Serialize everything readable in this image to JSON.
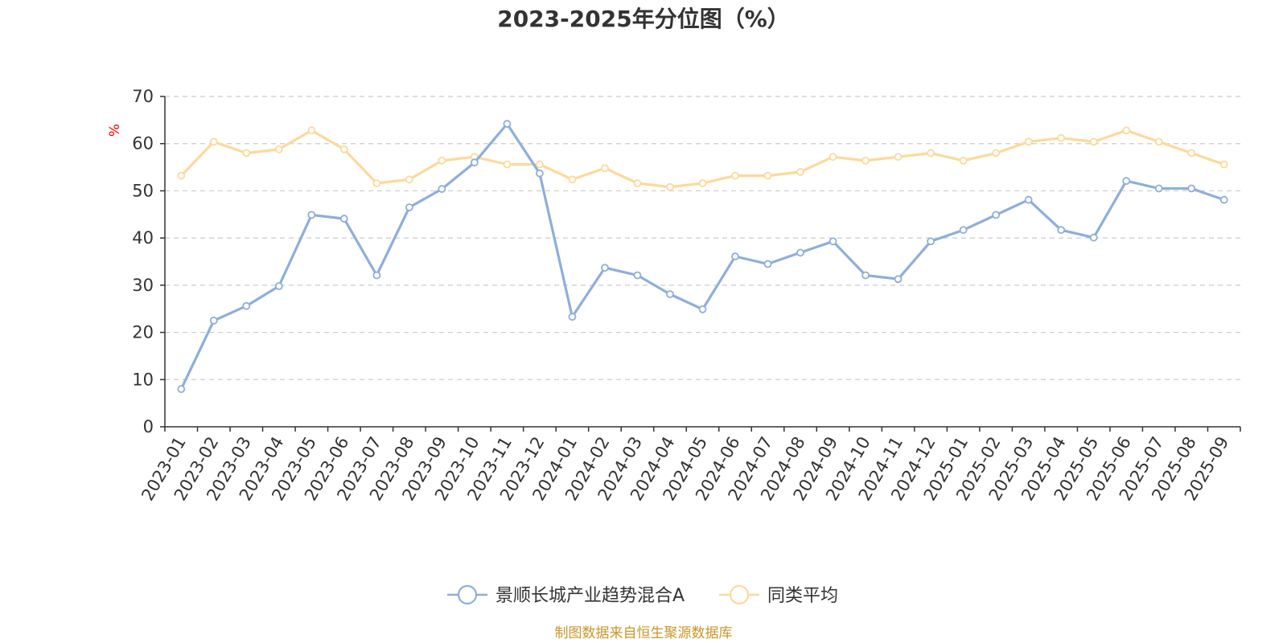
{
  "chart_data": {
    "type": "line",
    "title": "2023-2025年分位图（%）",
    "ylabel": "%",
    "ylim": [
      0,
      70
    ],
    "yticks": [
      0,
      10,
      20,
      30,
      40,
      50,
      60,
      70
    ],
    "grid": true,
    "legend_position": "bottom",
    "categories": [
      "2023-01",
      "2023-02",
      "2023-03",
      "2023-04",
      "2023-05",
      "2023-06",
      "2023-07",
      "2023-08",
      "2023-09",
      "2023-10",
      "2023-11",
      "2023-12",
      "2024-01",
      "2024-02",
      "2024-03",
      "2024-04",
      "2024-05",
      "2024-06",
      "2024-07",
      "2024-08",
      "2024-09",
      "2024-10",
      "2024-11",
      "2024-12",
      "2025-01",
      "2025-02",
      "2025-03",
      "2025-04",
      "2025-05",
      "2025-06",
      "2025-07",
      "2025-08",
      "2025-09"
    ],
    "series": [
      {
        "name": "景顺长城产业趋势混合A",
        "color": "#8eaedb",
        "values": [
          8.0,
          22.5,
          25.6,
          29.8,
          44.9,
          44.1,
          32.1,
          46.5,
          50.4,
          56.0,
          64.2,
          53.7,
          23.3,
          33.7,
          32.1,
          28.1,
          24.9,
          36.1,
          34.5,
          36.9,
          39.3,
          32.1,
          31.3,
          39.3,
          41.7,
          44.9,
          48.1,
          41.7,
          40.1,
          52.1,
          50.5,
          50.5,
          48.1
        ]
      },
      {
        "name": "同类平均",
        "color": "#fdd99a",
        "values": [
          53.2,
          60.4,
          58.0,
          58.8,
          62.8,
          58.8,
          51.6,
          52.4,
          56.4,
          57.2,
          55.6,
          55.6,
          52.4,
          54.8,
          51.6,
          50.8,
          51.6,
          53.2,
          53.2,
          54.0,
          57.2,
          56.4,
          57.2,
          58.0,
          56.4,
          58.0,
          60.4,
          61.2,
          60.4,
          62.8,
          60.4,
          58.0,
          55.6
        ]
      }
    ],
    "axis_color": "#333333",
    "grid_color": "#cccccc",
    "unit_color": "#ff0000"
  },
  "source_text": "制图数据来自恒生聚源数据库",
  "source_color": "#c8962a"
}
